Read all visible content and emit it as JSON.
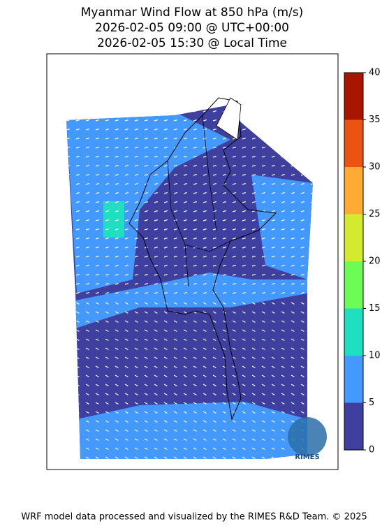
{
  "title": [
    "Myanmar Wind Flow at 850 hPa (m/s)",
    "2026-02-05 09:00 @ UTC+00:00",
    "2026-02-05 15:30 @ Local Time"
  ],
  "colorbar": {
    "ticks": [
      0,
      5,
      10,
      15,
      20,
      25,
      30,
      35,
      40
    ],
    "colors": [
      "#3f3f9f",
      "#4499ff",
      "#1edfc0",
      "#6cfc55",
      "#d3ea2f",
      "#ffaa35",
      "#ea5311",
      "#a81500"
    ]
  },
  "logo": "RIMES",
  "footer": "WRF model data processed and visualized by the RIMES R&D Team. © 2025"
}
